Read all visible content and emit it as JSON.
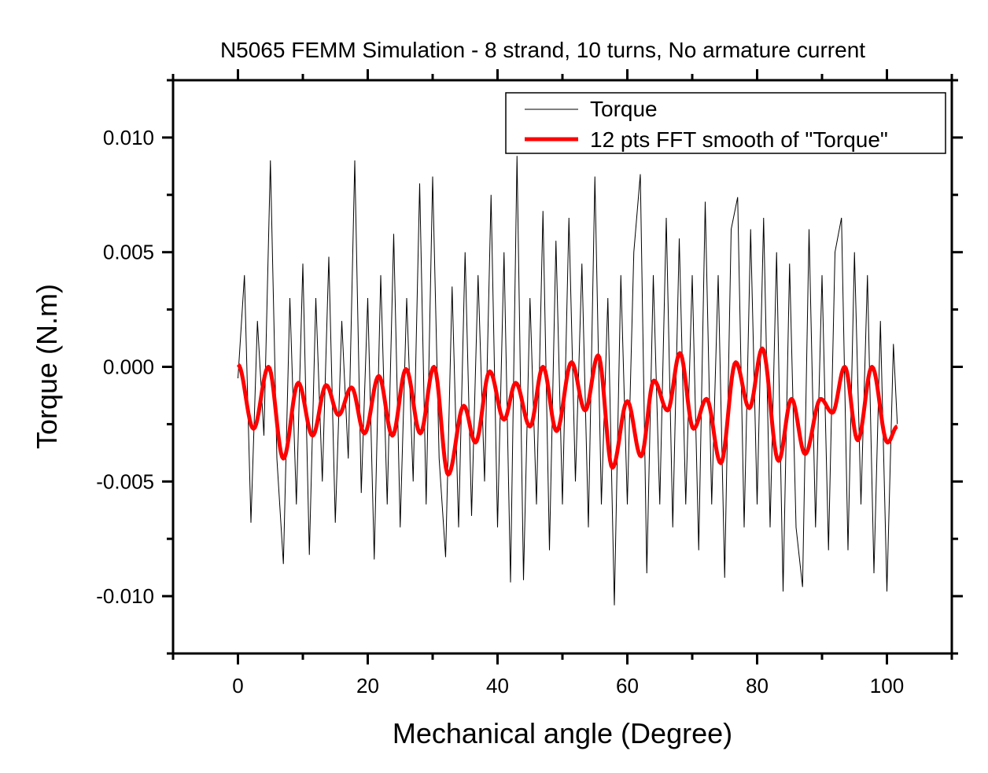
{
  "chart_data": {
    "type": "line",
    "title": "N5065 FEMM Simulation - 8 strand, 10 turns, No armature current",
    "xlabel": "Mechanical angle (Degree)",
    "ylabel": "Torque (N.m)",
    "xlim": [
      -10,
      110
    ],
    "ylim": [
      -0.0125,
      0.0125
    ],
    "xticks": [
      0,
      20,
      40,
      60,
      80,
      100
    ],
    "xtick_labels": [
      "0",
      "20",
      "40",
      "60",
      "80",
      "100"
    ],
    "yticks": [
      -0.01,
      -0.005,
      0,
      0.005,
      0.01
    ],
    "ytick_labels": [
      "-0.010",
      "-0.005",
      "0.000",
      "0.005",
      "0.010"
    ],
    "grid": false,
    "legend_position": "top-right",
    "series": [
      {
        "name": "Torque",
        "color": "#000000",
        "x": [
          0,
          1,
          2,
          3,
          4,
          5,
          6,
          7,
          8,
          9,
          10,
          11,
          12,
          13,
          14,
          15,
          16,
          17,
          18,
          19,
          20,
          21,
          22,
          23,
          24,
          25,
          26,
          27,
          28,
          29,
          30,
          31,
          32,
          33,
          34,
          35,
          36,
          37,
          38,
          39,
          40,
          41,
          42,
          43,
          44,
          45,
          46,
          47,
          48,
          49,
          50,
          51,
          52,
          53,
          54,
          55,
          56,
          57,
          58,
          59,
          60,
          61,
          62,
          63,
          64,
          65,
          66,
          67,
          68,
          69,
          70,
          71,
          72,
          73,
          74,
          75,
          76,
          77,
          78,
          79,
          80,
          81,
          82,
          83,
          84,
          85,
          86,
          87,
          88,
          89,
          90,
          91,
          92,
          93,
          94,
          95,
          96,
          97,
          98,
          99,
          100,
          101,
          101.6
        ],
        "y": [
          -0.0005,
          0.004,
          -0.0068,
          0.002,
          -0.003,
          0.009,
          -0.004,
          -0.0086,
          0.003,
          -0.006,
          0.0045,
          -0.0082,
          0.003,
          -0.005,
          0.0048,
          -0.0068,
          0.002,
          -0.004,
          0.009,
          -0.0055,
          0.003,
          -0.0084,
          0.004,
          -0.006,
          0.0058,
          -0.007,
          0.003,
          -0.005,
          0.008,
          -0.006,
          0.0083,
          -0.004,
          -0.0083,
          0.0035,
          -0.007,
          0.005,
          -0.0065,
          0.004,
          -0.005,
          0.0075,
          -0.007,
          0.005,
          -0.0094,
          0.0092,
          -0.0093,
          0.003,
          -0.006,
          0.0068,
          -0.008,
          0.0055,
          -0.006,
          0.0065,
          -0.005,
          0.0045,
          -0.007,
          0.0083,
          -0.006,
          0.003,
          -0.0104,
          0.004,
          -0.006,
          0.005,
          0.0084,
          -0.009,
          0.004,
          -0.006,
          0.0065,
          -0.007,
          0.0056,
          -0.006,
          0.004,
          -0.008,
          0.0072,
          -0.006,
          0.004,
          -0.0092,
          0.006,
          0.0074,
          -0.007,
          0.006,
          -0.006,
          0.0065,
          -0.007,
          0.005,
          -0.0098,
          0.0045,
          -0.007,
          -0.0096,
          0.006,
          -0.007,
          0.004,
          -0.008,
          0.005,
          0.0065,
          -0.008,
          0.005,
          -0.006,
          0.004,
          -0.009,
          0.002,
          -0.0098,
          0.001,
          -0.0025
        ]
      },
      {
        "name": "12 pts FFT smooth of \"Torque\"",
        "color": "#ff0000",
        "x": [
          0,
          2.4,
          4.7,
          7.0,
          9.3,
          11.5,
          13.6,
          15.5,
          17.5,
          19.5,
          21.7,
          23.8,
          25.9,
          28.1,
          30.2,
          32.4,
          34.8,
          36.6,
          38.8,
          41.0,
          42.8,
          45.0,
          47.0,
          49.1,
          51.4,
          53.5,
          55.5,
          57.7,
          60.0,
          62.1,
          64.1,
          66.2,
          68.1,
          70.2,
          72.2,
          74.4,
          76.7,
          78.8,
          80.8,
          83.3,
          85.3,
          87.4,
          89.8,
          91.6,
          93.5,
          95.5,
          97.7,
          100.1,
          101.6
        ],
        "y": [
          0.0001,
          -0.0027,
          0.0,
          -0.004,
          -0.0007,
          -0.003,
          -0.0008,
          -0.0021,
          -0.0009,
          -0.0029,
          -0.0004,
          -0.003,
          -0.0001,
          -0.0029,
          0.0,
          -0.0047,
          -0.0017,
          -0.0033,
          -0.0002,
          -0.0023,
          -0.0007,
          -0.0026,
          0.0,
          -0.0028,
          0.0002,
          -0.0019,
          0.0005,
          -0.0044,
          -0.0015,
          -0.0039,
          -0.0006,
          -0.0019,
          0.0006,
          -0.0027,
          -0.0014,
          -0.0042,
          0.0002,
          -0.0018,
          0.0008,
          -0.0041,
          -0.0014,
          -0.0038,
          -0.0014,
          -0.002,
          0.0,
          -0.0032,
          0.0,
          -0.0033,
          -0.0026
        ]
      }
    ]
  }
}
